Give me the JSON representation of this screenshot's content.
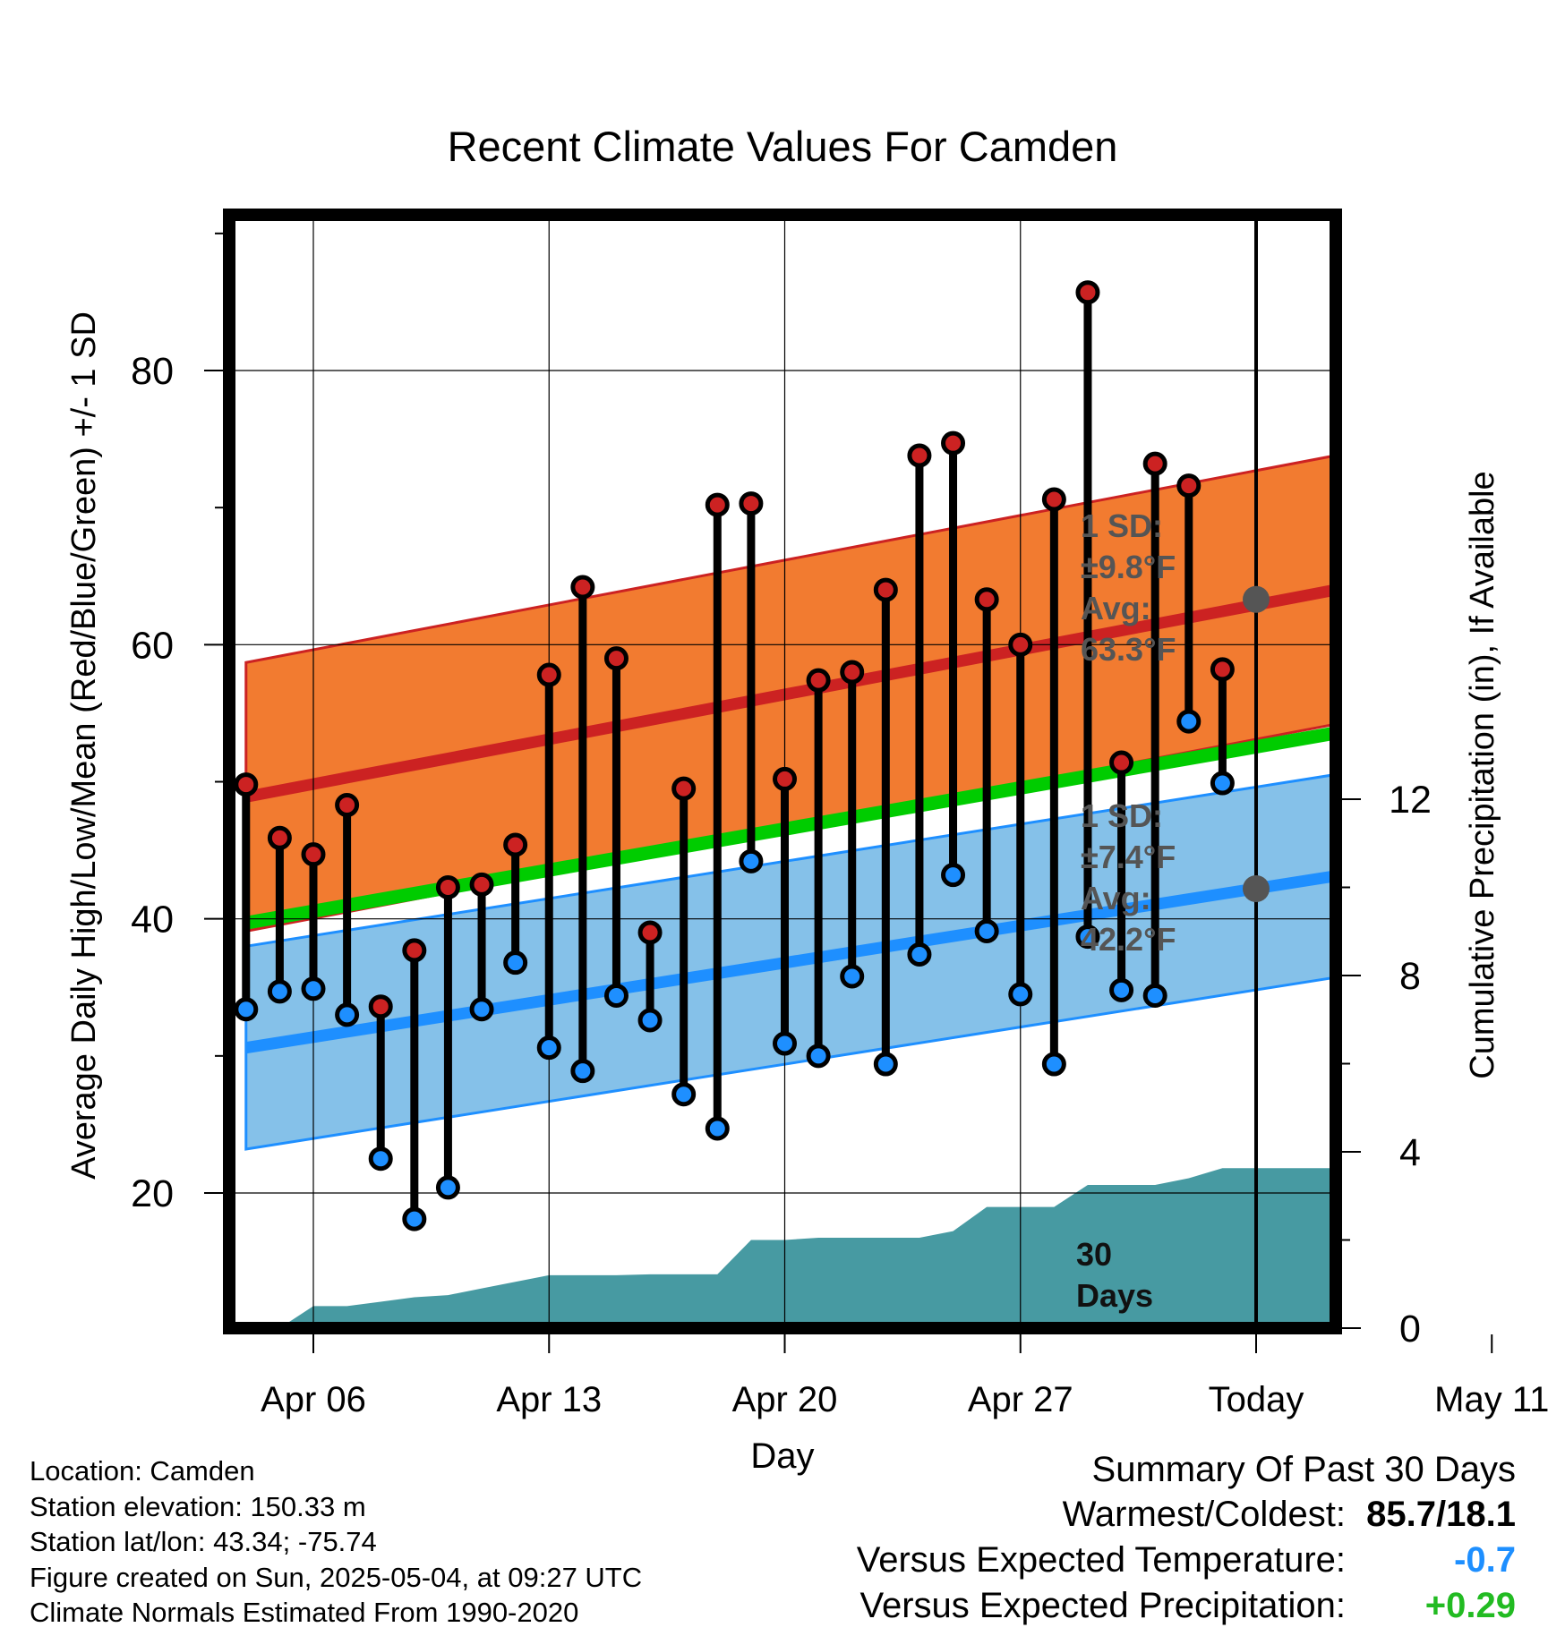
{
  "chart_data": {
    "type": "line",
    "title": "Recent Climate Values For Camden",
    "xlabel": "Day",
    "ylabel": "Average Daily High/Low/Mean (Red/Blue/Green) +/- 1 SD",
    "y2label": "Cumulative Precipitation (in), If Available",
    "xlim": [
      -3.4,
      37.2
    ],
    "ylim": [
      10,
      90
    ],
    "y2lim": [
      0,
      24
    ],
    "x_ticks": [
      {
        "x": 0,
        "label": "Apr 06"
      },
      {
        "x": 7,
        "label": "Apr 13"
      },
      {
        "x": 14,
        "label": "Apr 20"
      },
      {
        "x": 21,
        "label": "Apr 27"
      },
      {
        "x": 28,
        "label": "Today"
      },
      {
        "x": 35,
        "label": "May 11"
      }
    ],
    "y_ticks": [
      20,
      40,
      60,
      80
    ],
    "y2_ticks": [
      0,
      4,
      8,
      12
    ],
    "grid": true,
    "highs": [
      49.8,
      45.9,
      44.7,
      48.3,
      33.6,
      37.7,
      42.3,
      42.5,
      45.4,
      57.8,
      64.2,
      59.0,
      39.0,
      49.5,
      70.2,
      70.3,
      50.2,
      57.4,
      58.0,
      64.0,
      73.8,
      74.7,
      63.3,
      60.0,
      70.6,
      85.7,
      51.4,
      73.2,
      71.6,
      58.2
    ],
    "lows": [
      33.4,
      34.7,
      34.9,
      33.0,
      22.5,
      18.1,
      20.4,
      33.4,
      36.8,
      30.6,
      28.9,
      34.4,
      32.6,
      27.2,
      24.7,
      44.2,
      30.9,
      30.0,
      35.8,
      29.4,
      37.4,
      43.2,
      39.1,
      34.5,
      29.4,
      38.7,
      34.8,
      34.4,
      54.4,
      49.9
    ],
    "normal_high": {
      "start": 48.9,
      "end": 67.1,
      "sd": 9.8
    },
    "normal_low": {
      "start": 30.6,
      "end": 45.7,
      "sd": 7.4
    },
    "normal_mean": {
      "start": 39.7,
      "end": 56.4
    },
    "precip_cumulative": [
      0,
      0.5,
      0.5,
      0.6,
      0.7,
      0.75,
      0.9,
      1.05,
      1.2,
      1.2,
      1.2,
      1.22,
      1.22,
      1.22,
      2.0,
      2.0,
      2.05,
      2.05,
      2.05,
      2.05,
      2.2,
      2.75,
      2.75,
      2.75,
      3.25,
      3.25,
      3.25,
      3.4,
      3.63,
      3.63
    ],
    "annotations": {
      "high": {
        "line1": "1 SD:",
        "sd": "±9.8°F",
        "line3": "Avg:",
        "avg": "63.3°F"
      },
      "low": {
        "line1": "1 SD:",
        "sd": "±7.4°F",
        "line3": "Avg:",
        "avg": "42.2°F"
      },
      "days": {
        "num": "30",
        "word": "Days"
      }
    },
    "colors": {
      "high_band": "#f27b30",
      "high_line": "#cc2222",
      "low_band": "#85c1e9",
      "low_line": "#1e8fff",
      "mean_line": "#00cc00",
      "precip": "#479aa2",
      "high_dot": "#cc2222",
      "low_dot": "#1e8fff",
      "annotation": "#555555"
    }
  },
  "info": {
    "location": "Location: Camden",
    "elevation": "Station elevation: 150.33 m",
    "latlon": "Station lat/lon: 43.34; -75.74",
    "created": "Figure created on Sun, 2025-05-04, at 09:27 UTC",
    "normals": "Climate Normals Estimated From 1990-2020"
  },
  "summary": {
    "title": "Summary Of Past 30 Days",
    "warmest_label": "Warmest/Coldest:",
    "warmest_value": "85.7/18.1",
    "temp_label": "Versus Expected Temperature:",
    "temp_value": "-0.7",
    "temp_color": "#1e8fff",
    "precip_label": "Versus Expected Precipitation:",
    "precip_value": "+0.29",
    "precip_color": "#22bb22"
  }
}
